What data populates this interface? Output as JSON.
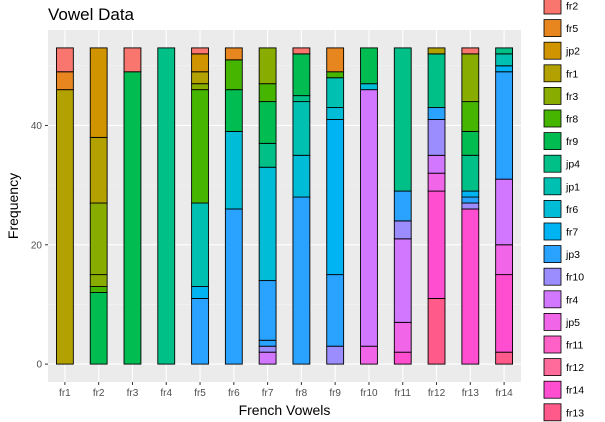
{
  "chart_data": {
    "type": "bar",
    "stacked": true,
    "title": "Vowel Data",
    "xlabel": "French Vowels",
    "ylabel": "Frequency",
    "ylim": [
      -3,
      56
    ],
    "yticks": [
      0,
      20,
      40
    ],
    "grid": true,
    "legend_position": "right",
    "categories": [
      "fr1",
      "fr2",
      "fr3",
      "fr4",
      "fr5",
      "fr6",
      "fr7",
      "fr8",
      "fr9",
      "fr10",
      "fr11",
      "fr12",
      "fr13",
      "fr14"
    ],
    "legend": [
      {
        "name": "fr2",
        "color": "#F8766D"
      },
      {
        "name": "fr5",
        "color": "#E7851E"
      },
      {
        "name": "jp2",
        "color": "#D09400"
      },
      {
        "name": "fr1",
        "color": "#B2A100"
      },
      {
        "name": "fr3",
        "color": "#89AC00"
      },
      {
        "name": "fr8",
        "color": "#45B500"
      },
      {
        "name": "fr9",
        "color": "#00BC51"
      },
      {
        "name": "jp4",
        "color": "#00C087"
      },
      {
        "name": "jp1",
        "color": "#00C0B2"
      },
      {
        "name": "fr6",
        "color": "#00BCD6"
      },
      {
        "name": "fr7",
        "color": "#00B3F2"
      },
      {
        "name": "jp3",
        "color": "#29A3FF"
      },
      {
        "name": "fr10",
        "color": "#9C8DFF"
      },
      {
        "name": "fr4",
        "color": "#D277FF"
      },
      {
        "name": "jp5",
        "color": "#F166E8"
      },
      {
        "name": "fr11",
        "color": "#FF61C7"
      },
      {
        "name": "fr12",
        "color": "#FF6C9C"
      },
      {
        "name": "fr14",
        "color": "#FF4FD0"
      },
      {
        "name": "fr13",
        "color": "#FF5A8A"
      }
    ],
    "stacks": [
      {
        "category": "fr1",
        "segments": [
          {
            "from": 0,
            "to": 46,
            "color": "#B2A100"
          },
          {
            "from": 46,
            "to": 49,
            "color": "#E7851E"
          },
          {
            "from": 49,
            "to": 53,
            "color": "#F8766D"
          }
        ]
      },
      {
        "category": "fr2",
        "segments": [
          {
            "from": 0,
            "to": 12,
            "color": "#00BC51"
          },
          {
            "from": 12,
            "to": 13,
            "color": "#45B500"
          },
          {
            "from": 13,
            "to": 15,
            "color": "#89AC00"
          },
          {
            "from": 15,
            "to": 27,
            "color": "#89AC00"
          },
          {
            "from": 27,
            "to": 38,
            "color": "#B2A100"
          },
          {
            "from": 38,
            "to": 53,
            "color": "#D09400"
          }
        ]
      },
      {
        "category": "fr3",
        "segments": [
          {
            "from": 0,
            "to": 49,
            "color": "#00BC51"
          },
          {
            "from": 49,
            "to": 53,
            "color": "#F8766D"
          }
        ]
      },
      {
        "category": "fr4",
        "segments": [
          {
            "from": 0,
            "to": 53,
            "color": "#00C087"
          }
        ]
      },
      {
        "category": "fr5",
        "segments": [
          {
            "from": 0,
            "to": 11,
            "color": "#29A3FF"
          },
          {
            "from": 11,
            "to": 13,
            "color": "#00B3F2"
          },
          {
            "from": 13,
            "to": 27,
            "color": "#00C0B2"
          },
          {
            "from": 27,
            "to": 46,
            "color": "#45B500"
          },
          {
            "from": 46,
            "to": 47,
            "color": "#89AC00"
          },
          {
            "from": 47,
            "to": 49,
            "color": "#B2A100"
          },
          {
            "from": 49,
            "to": 52,
            "color": "#D09400"
          },
          {
            "from": 52,
            "to": 53,
            "color": "#F8766D"
          }
        ]
      },
      {
        "category": "fr6",
        "segments": [
          {
            "from": 0,
            "to": 26,
            "color": "#29A3FF"
          },
          {
            "from": 26,
            "to": 39,
            "color": "#00BCD6"
          },
          {
            "from": 39,
            "to": 46,
            "color": "#00BC51"
          },
          {
            "from": 46,
            "to": 51,
            "color": "#45B500"
          },
          {
            "from": 51,
            "to": 53,
            "color": "#E7851E"
          }
        ]
      },
      {
        "category": "fr7",
        "segments": [
          {
            "from": 0,
            "to": 2,
            "color": "#D277FF"
          },
          {
            "from": 2,
            "to": 3,
            "color": "#9C8DFF"
          },
          {
            "from": 3,
            "to": 4,
            "color": "#29A3FF"
          },
          {
            "from": 4,
            "to": 14,
            "color": "#29A3FF"
          },
          {
            "from": 14,
            "to": 33,
            "color": "#00BCD6"
          },
          {
            "from": 33,
            "to": 37,
            "color": "#00C087"
          },
          {
            "from": 37,
            "to": 44,
            "color": "#00BC51"
          },
          {
            "from": 44,
            "to": 47,
            "color": "#45B500"
          },
          {
            "from": 47,
            "to": 53,
            "color": "#89AC00"
          }
        ]
      },
      {
        "category": "fr8",
        "segments": [
          {
            "from": 0,
            "to": 28,
            "color": "#29A3FF"
          },
          {
            "from": 28,
            "to": 35,
            "color": "#00BCD6"
          },
          {
            "from": 35,
            "to": 44,
            "color": "#00C0B2"
          },
          {
            "from": 44,
            "to": 45,
            "color": "#00C087"
          },
          {
            "from": 45,
            "to": 52,
            "color": "#00BC51"
          },
          {
            "from": 52,
            "to": 53,
            "color": "#F8766D"
          }
        ]
      },
      {
        "category": "fr9",
        "segments": [
          {
            "from": 0,
            "to": 3,
            "color": "#9C8DFF"
          },
          {
            "from": 3,
            "to": 15,
            "color": "#29A3FF"
          },
          {
            "from": 15,
            "to": 41,
            "color": "#00B3F2"
          },
          {
            "from": 41,
            "to": 43,
            "color": "#00BCD6"
          },
          {
            "from": 43,
            "to": 48,
            "color": "#00C0B2"
          },
          {
            "from": 48,
            "to": 49,
            "color": "#45B500"
          },
          {
            "from": 49,
            "to": 53,
            "color": "#E7851E"
          }
        ]
      },
      {
        "category": "fr10",
        "segments": [
          {
            "from": 0,
            "to": 3,
            "color": "#F166E8"
          },
          {
            "from": 3,
            "to": 46,
            "color": "#D277FF"
          },
          {
            "from": 46,
            "to": 47,
            "color": "#00BCD6"
          },
          {
            "from": 47,
            "to": 53,
            "color": "#00BC51"
          }
        ]
      },
      {
        "category": "fr11",
        "segments": [
          {
            "from": 0,
            "to": 2,
            "color": "#FF4FD0"
          },
          {
            "from": 2,
            "to": 7,
            "color": "#F166E8"
          },
          {
            "from": 7,
            "to": 21,
            "color": "#D277FF"
          },
          {
            "from": 21,
            "to": 24,
            "color": "#9C8DFF"
          },
          {
            "from": 24,
            "to": 29,
            "color": "#29A3FF"
          },
          {
            "from": 29,
            "to": 53,
            "color": "#00C087"
          }
        ]
      },
      {
        "category": "fr12",
        "segments": [
          {
            "from": 0,
            "to": 11,
            "color": "#FF5A8A"
          },
          {
            "from": 11,
            "to": 29,
            "color": "#FF4FD0"
          },
          {
            "from": 29,
            "to": 32,
            "color": "#F166E8"
          },
          {
            "from": 32,
            "to": 35,
            "color": "#D277FF"
          },
          {
            "from": 35,
            "to": 41,
            "color": "#9C8DFF"
          },
          {
            "from": 41,
            "to": 43,
            "color": "#29A3FF"
          },
          {
            "from": 43,
            "to": 52,
            "color": "#00C087"
          },
          {
            "from": 52,
            "to": 53,
            "color": "#B2A100"
          }
        ]
      },
      {
        "category": "fr13",
        "segments": [
          {
            "from": 0,
            "to": 26,
            "color": "#FF4FD0"
          },
          {
            "from": 26,
            "to": 27,
            "color": "#9C8DFF"
          },
          {
            "from": 27,
            "to": 28,
            "color": "#29A3FF"
          },
          {
            "from": 28,
            "to": 29,
            "color": "#00B3F2"
          },
          {
            "from": 29,
            "to": 35,
            "color": "#00C087"
          },
          {
            "from": 35,
            "to": 39,
            "color": "#00BC51"
          },
          {
            "from": 39,
            "to": 44,
            "color": "#45B500"
          },
          {
            "from": 44,
            "to": 52,
            "color": "#89AC00"
          },
          {
            "from": 52,
            "to": 53,
            "color": "#F8766D"
          }
        ]
      },
      {
        "category": "fr14",
        "segments": [
          {
            "from": 0,
            "to": 2,
            "color": "#FF5A8A"
          },
          {
            "from": 2,
            "to": 15,
            "color": "#FF4FD0"
          },
          {
            "from": 15,
            "to": 20,
            "color": "#F166E8"
          },
          {
            "from": 20,
            "to": 31,
            "color": "#D277FF"
          },
          {
            "from": 31,
            "to": 49,
            "color": "#29A3FF"
          },
          {
            "from": 49,
            "to": 50,
            "color": "#00B3F2"
          },
          {
            "from": 50,
            "to": 52,
            "color": "#00C0B2"
          },
          {
            "from": 52,
            "to": 53,
            "color": "#00C087"
          }
        ]
      }
    ]
  }
}
